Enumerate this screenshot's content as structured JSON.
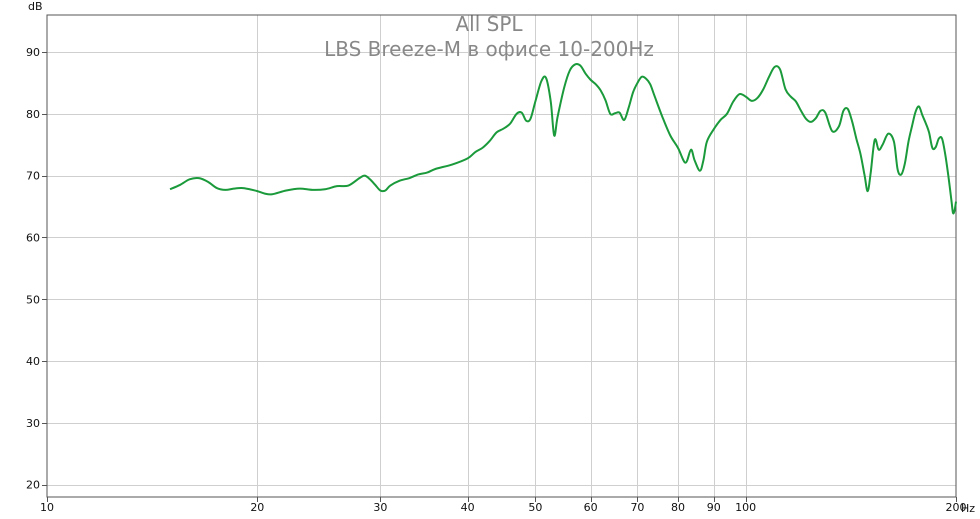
{
  "chart_data": {
    "type": "line",
    "title": "All SPL",
    "subtitle": "LBS Breeze-M в офисе 10-200Hz",
    "ylabel": "dB",
    "xunit": "Hz",
    "x_scale": "log",
    "xlim": [
      10,
      200
    ],
    "ylim": [
      18,
      96
    ],
    "grid": true,
    "x_ticks": [
      {
        "value": 10,
        "label": "10"
      },
      {
        "value": 20,
        "label": "20"
      },
      {
        "value": 30,
        "label": "30"
      },
      {
        "value": 40,
        "label": "40"
      },
      {
        "value": 50,
        "label": "50"
      },
      {
        "value": 60,
        "label": "60"
      },
      {
        "value": 70,
        "label": "70"
      },
      {
        "value": 80,
        "label": "80"
      },
      {
        "value": 90,
        "label": "90"
      },
      {
        "value": 100,
        "label": "100"
      },
      {
        "value": 200,
        "label": "200"
      }
    ],
    "y_ticks": [
      {
        "value": 20,
        "label": "20"
      },
      {
        "value": 30,
        "label": "30"
      },
      {
        "value": 40,
        "label": "40"
      },
      {
        "value": 50,
        "label": "50"
      },
      {
        "value": 60,
        "label": "60"
      },
      {
        "value": 70,
        "label": "70"
      },
      {
        "value": 80,
        "label": "80"
      },
      {
        "value": 90,
        "label": "90"
      }
    ],
    "series": [
      {
        "color": "#1a9a3a",
        "points": [
          [
            15.0,
            67.8
          ],
          [
            15.5,
            68.5
          ],
          [
            16.0,
            69.4
          ],
          [
            16.5,
            69.6
          ],
          [
            17.0,
            69.0
          ],
          [
            17.5,
            68.0
          ],
          [
            18.0,
            67.7
          ],
          [
            18.5,
            67.9
          ],
          [
            19.0,
            68.0
          ],
          [
            19.5,
            67.8
          ],
          [
            20.0,
            67.5
          ],
          [
            20.5,
            67.1
          ],
          [
            21.0,
            67.0
          ],
          [
            22.0,
            67.6
          ],
          [
            23.0,
            67.9
          ],
          [
            24.0,
            67.7
          ],
          [
            25.0,
            67.8
          ],
          [
            26.0,
            68.3
          ],
          [
            27.0,
            68.4
          ],
          [
            28.0,
            69.6
          ],
          [
            28.5,
            70.0
          ],
          [
            29.0,
            69.4
          ],
          [
            29.5,
            68.5
          ],
          [
            30.0,
            67.6
          ],
          [
            30.5,
            67.6
          ],
          [
            31.0,
            68.4
          ],
          [
            32.0,
            69.2
          ],
          [
            33.0,
            69.6
          ],
          [
            34.0,
            70.2
          ],
          [
            35.0,
            70.5
          ],
          [
            36.0,
            71.1
          ],
          [
            38.0,
            71.8
          ],
          [
            40.0,
            72.8
          ],
          [
            41.0,
            73.8
          ],
          [
            42.0,
            74.5
          ],
          [
            43.0,
            75.6
          ],
          [
            44.0,
            77.0
          ],
          [
            45.0,
            77.6
          ],
          [
            46.0,
            78.4
          ],
          [
            47.0,
            80.0
          ],
          [
            47.8,
            80.2
          ],
          [
            48.5,
            78.9
          ],
          [
            49.2,
            79.2
          ],
          [
            50.0,
            82.0
          ],
          [
            51.0,
            85.3
          ],
          [
            51.8,
            85.8
          ],
          [
            52.6,
            82.0
          ],
          [
            53.2,
            76.5
          ],
          [
            53.8,
            79.5
          ],
          [
            55.0,
            84.3
          ],
          [
            56.0,
            87.0
          ],
          [
            57.0,
            88.0
          ],
          [
            58.0,
            87.8
          ],
          [
            59.0,
            86.5
          ],
          [
            60.0,
            85.5
          ],
          [
            61.0,
            84.8
          ],
          [
            62.0,
            83.8
          ],
          [
            63.0,
            82.2
          ],
          [
            64.0,
            80.0
          ],
          [
            65.0,
            80.1
          ],
          [
            66.0,
            80.2
          ],
          [
            67.0,
            79.0
          ],
          [
            68.0,
            81.0
          ],
          [
            69.0,
            83.5
          ],
          [
            70.0,
            85.0
          ],
          [
            71.0,
            86.0
          ],
          [
            72.0,
            85.7
          ],
          [
            73.0,
            84.8
          ],
          [
            74.0,
            83.0
          ],
          [
            76.0,
            79.5
          ],
          [
            78.0,
            76.5
          ],
          [
            80.0,
            74.5
          ],
          [
            82.0,
            72.1
          ],
          [
            83.5,
            74.2
          ],
          [
            84.5,
            72.5
          ],
          [
            86.0,
            70.8
          ],
          [
            87.0,
            72.5
          ],
          [
            88.0,
            75.5
          ],
          [
            90.0,
            77.5
          ],
          [
            92.0,
            79.0
          ],
          [
            94.0,
            80.0
          ],
          [
            96.0,
            82.0
          ],
          [
            98.0,
            83.2
          ],
          [
            100.0,
            82.8
          ],
          [
            102.0,
            82.1
          ],
          [
            104.0,
            82.6
          ],
          [
            106.0,
            84.0
          ],
          [
            108.0,
            86.0
          ],
          [
            110.0,
            87.6
          ],
          [
            112.0,
            87.2
          ],
          [
            114.0,
            84.0
          ],
          [
            116.0,
            82.8
          ],
          [
            118.0,
            82.0
          ],
          [
            120.0,
            80.5
          ],
          [
            122.0,
            79.2
          ],
          [
            124.0,
            78.7
          ],
          [
            126.0,
            79.3
          ],
          [
            128.0,
            80.5
          ],
          [
            130.0,
            80.2
          ],
          [
            133.0,
            77.2
          ],
          [
            136.0,
            78.0
          ],
          [
            138.0,
            80.5
          ],
          [
            140.0,
            80.8
          ],
          [
            142.0,
            78.8
          ],
          [
            144.0,
            76.0
          ],
          [
            146.0,
            73.5
          ],
          [
            148.0,
            70.0
          ],
          [
            149.5,
            67.5
          ],
          [
            151.0,
            70.5
          ],
          [
            153.0,
            75.8
          ],
          [
            155.0,
            74.2
          ],
          [
            157.0,
            75.0
          ],
          [
            160.0,
            76.8
          ],
          [
            163.0,
            75.5
          ],
          [
            165.0,
            71.0
          ],
          [
            167.0,
            70.2
          ],
          [
            169.0,
            72.0
          ],
          [
            171.0,
            75.5
          ],
          [
            173.0,
            78.0
          ],
          [
            175.0,
            80.3
          ],
          [
            177.0,
            81.2
          ],
          [
            179.0,
            79.8
          ],
          [
            181.0,
            78.5
          ],
          [
            183.0,
            77.0
          ],
          [
            185.0,
            74.5
          ],
          [
            187.0,
            74.6
          ],
          [
            189.0,
            76.0
          ],
          [
            191.0,
            76.0
          ],
          [
            193.0,
            73.5
          ],
          [
            195.0,
            70.0
          ],
          [
            197.0,
            66.0
          ],
          [
            198.0,
            64.0
          ],
          [
            199.0,
            64.3
          ],
          [
            200.0,
            65.8
          ]
        ]
      }
    ]
  }
}
